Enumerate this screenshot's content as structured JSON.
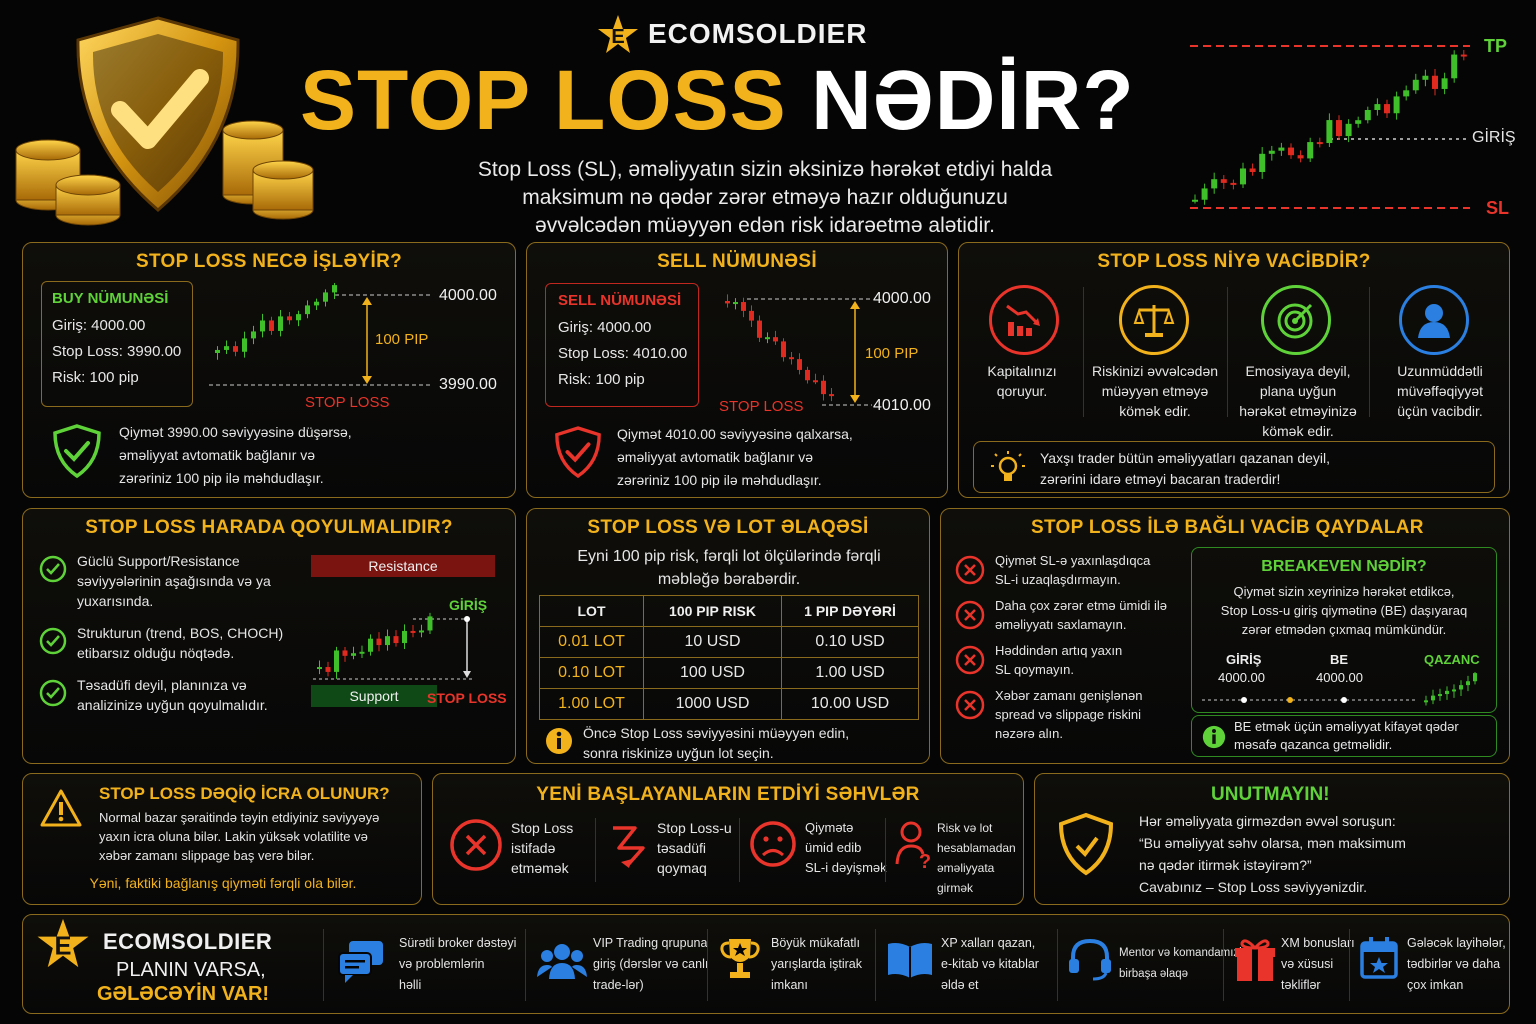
{
  "brand": "ECOMSOLDIER",
  "title": {
    "part1": "STOP LOSS",
    "part2": "NƏDİR?"
  },
  "intro": [
    "Stop Loss (SL), əməliyyatın sizin əksinizə hərəkət etdiyi halda",
    "maksimum nə qədər zərər etməyə hazır olduğunuzu",
    "əvvəlcədən müəyyən edən risk idarəetmə alətidir."
  ],
  "hero_chart": {
    "tp": "TP",
    "entry": "GİRİŞ",
    "sl": "SL"
  },
  "how": {
    "title": "STOP LOSS NECƏ İŞLƏYİR?",
    "box_title": "BUY NÜMUNƏSİ",
    "entry": "Giriş: 4000.00",
    "sl": "Stop Loss: 3990.00",
    "risk": "Risk: 100 pip",
    "top_price": "4000.00",
    "bottom_price": "3990.00",
    "pip": "100 PIP",
    "sl_label": "STOP LOSS",
    "note": [
      "Qiymət 3990.00 səviyyəsinə düşərsə,",
      "əməliyyat avtomatik bağlanır və",
      "zərəriniz 100 pip ilə məhdudlaşır."
    ]
  },
  "sell": {
    "title": "SELL NÜMUNƏSİ",
    "box_title": "SELL NÜMUNƏSİ",
    "entry": "Giriş: 4000.00",
    "sl": "Stop Loss: 4010.00",
    "risk": "Risk: 100 pip",
    "top_price": "4000.00",
    "bottom_price": "4010.00",
    "pip": "100 PIP",
    "sl_label": "STOP LOSS",
    "note": [
      "Qiymət 4010.00 səviyyəsinə qalxarsa,",
      "əməliyyat avtomatik bağlanır və",
      "zərəriniz 100 pip ilə məhdudlaşır."
    ]
  },
  "why": {
    "title": "STOP LOSS NİYƏ VACİBDİR?",
    "items": [
      [
        "Kapitalınızı",
        "qoruyur."
      ],
      [
        "Riskinizi əvvəlcədən",
        "müəyyən etməyə",
        "kömək edir."
      ],
      [
        "Emosiyaya deyil,",
        "plana uyğun",
        "hərəkət etməyinizə",
        "kömək edir."
      ],
      [
        "Uzunmüddətli",
        "müvəffəqiyyət",
        "üçün vacibdir."
      ]
    ],
    "tip": [
      "Yaxşı trader bütün əməliyyatları qazanan deyil,",
      "zərərini idarə etməyi bacaran traderdir!"
    ]
  },
  "where": {
    "title": "STOP LOSS HARADA QOYULMALIDIR?",
    "items": [
      [
        "Güclü Support/Resistance",
        "səviyyələrinin aşağısında və ya",
        "yuxarısında."
      ],
      [
        "Strukturun (trend, BOS, CHOCH)",
        "etibarsız olduğu nöqtədə."
      ],
      [
        "Təsadüfi deyil, planınıza və",
        "analizinizə uyğun qoyulmalıdır."
      ]
    ],
    "resistance": "Resistance",
    "support": "Support",
    "entry": "GİRİŞ",
    "sl_label": "STOP LOSS"
  },
  "lot": {
    "title": "STOP LOSS VƏ LOT ƏLAQƏSİ",
    "subtitle": [
      "Eyni 100 pip risk, fərqli lot ölçülərində fərqli",
      "məbləğə bərabərdir."
    ],
    "headers": [
      "LOT",
      "100 PIP RISK",
      "1 PIP DƏYƏRİ"
    ],
    "rows": [
      [
        "0.01 LOT",
        "10 USD",
        "0.10 USD"
      ],
      [
        "0.10 LOT",
        "100 USD",
        "1.00 USD"
      ],
      [
        "1.00 LOT",
        "1000 USD",
        "10.00 USD"
      ]
    ],
    "note": [
      "Öncə Stop Loss səviyyəsini müəyyən edin,",
      "sonra riskinizə uyğun lot seçin."
    ]
  },
  "rules": {
    "title": "STOP LOSS İLƏ BAĞLI VACİB QAYDALAR",
    "items": [
      [
        "Qiymət SL-ə yaxınlaşdıqca",
        "SL-i uzaqlaşdırmayın."
      ],
      [
        "Daha çox zərər etmə ümidi ilə",
        "əməliyyatı saxlamayın."
      ],
      [
        "Həddindən artıq yaxın",
        "SL qoymayın."
      ],
      [
        "Xəbər zamanı genişlənən",
        "spread və slippage riskini",
        "nəzərə alın."
      ]
    ],
    "be_title": "BREAKEVEN NƏDİR?",
    "be_text": [
      "Qiymət sizin xeyrinizə hərəkət etdikcə,",
      "Stop Loss-u giriş qiymətinə (BE) daşıyaraq",
      "zərər etmədən çıxmaq mümkündür."
    ],
    "be_entry": "GİRİŞ",
    "be_entry_val": "4000.00",
    "be_be": "BE",
    "be_be_val": "4000.00",
    "be_profit": "QAZANC",
    "be_note": [
      "BE etmək üçün əməliyyat kifayət qədər",
      "məsafə qazanca getməlidir."
    ]
  },
  "exec": {
    "title": "STOP LOSS DƏQİQ İCRA OLUNUR?",
    "text": [
      "Normal bazar şəraitində təyin etdiyiniz səviyyəyə",
      "yaxın icra oluna bilər. Lakin yüksək volatilite və",
      "xəbər zamanı slippage baş verə bilər."
    ],
    "note": "Yəni, faktiki bağlanış qiyməti fərqli ola bilər."
  },
  "mistakes": {
    "title": "YENİ BAŞLAYANLARIN ETDİYİ SƏHVLƏR",
    "items": [
      [
        "Stop Loss",
        "istifadə",
        "etməmək"
      ],
      [
        "Stop Loss-u",
        "təsadüfi",
        "qoymaq"
      ],
      [
        "Qiymətə",
        "ümid edib",
        "SL-i dəyişmək"
      ],
      [
        "Risk və lot",
        "hesablamadan",
        "əməliyyata girmək"
      ]
    ]
  },
  "remember": {
    "title": "UNUTMAYIN!",
    "text": [
      "Hər əməliyyata girməzdən əvvəl soruşun:",
      "“Bu əməliyyat səhv olarsa, mən maksimum",
      "nə qədər itirmək istəyirəm?”",
      "Cavabınız – Stop Loss səviyyənizdir."
    ]
  },
  "footer": {
    "brand": "ECOMSOLDIER",
    "slogan1": "PLANIN VARSA,",
    "slogan2": "GƏLƏCƏYİN VAR!",
    "items": [
      [
        "Sürətli broker dəstəyi",
        "və problemlərin",
        "həlli"
      ],
      [
        "VIP Trading qrupuna",
        "giriş (dərslər və canlı",
        "trade-lər)"
      ],
      [
        "Böyük mükafatlı",
        "yarışlarda iştirak",
        "imkanı"
      ],
      [
        "XP xalları qazan,",
        "e-kitab və kitablar",
        "əldə et"
      ],
      [
        "Mentor və komandamızla",
        "birbaşa əlaqə"
      ],
      [
        "XM bonusları",
        "və xüsusi",
        "təkliflər"
      ],
      [
        "Gələcək layihələr,",
        "tədbirlər və daha",
        "çox imkan"
      ]
    ]
  },
  "colors": {
    "gold": "#f2b21c",
    "green": "#5fd23a",
    "red": "#e8342a",
    "blue": "#2a7fe0"
  }
}
